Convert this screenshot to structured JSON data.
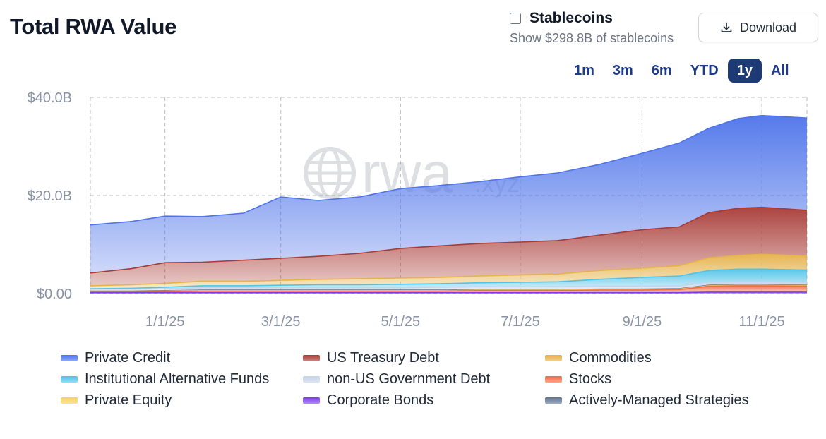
{
  "header": {
    "title": "Total RWA Value",
    "stablecoins_label": "Stablecoins",
    "stablecoins_sub": "Show $298.8B of stablecoins",
    "download_label": "Download"
  },
  "ranges": [
    {
      "label": "1m",
      "active": false
    },
    {
      "label": "3m",
      "active": false
    },
    {
      "label": "6m",
      "active": false
    },
    {
      "label": "YTD",
      "active": false
    },
    {
      "label": "1y",
      "active": true
    },
    {
      "label": "All",
      "active": false
    }
  ],
  "watermark": {
    "main": "rwa",
    "suffix": ".xyz"
  },
  "chart_data": {
    "type": "area",
    "stacked": true,
    "x": [
      "2024-11-24",
      "2024-12-15",
      "2025-01-01",
      "2025-01-20",
      "2025-02-10",
      "2025-03-01",
      "2025-03-20",
      "2025-04-10",
      "2025-05-01",
      "2025-05-20",
      "2025-06-10",
      "2025-07-01",
      "2025-07-20",
      "2025-08-10",
      "2025-09-01",
      "2025-09-20",
      "2025-10-05",
      "2025-10-20",
      "2025-11-01",
      "2025-11-24"
    ],
    "x_ticks": [
      "1/1/25",
      "3/1/25",
      "5/1/25",
      "7/1/25",
      "9/1/25",
      "11/1/25"
    ],
    "y_ticks": [
      "$0.00",
      "$20.0B",
      "$40.0B"
    ],
    "ylim": [
      0,
      40
    ],
    "y_unit": "B USD",
    "grid": true,
    "legend_position": "bottom",
    "series": [
      {
        "name": "Corporate Bonds",
        "color": "#7c3aed",
        "values": [
          0.2,
          0.2,
          0.2,
          0.2,
          0.2,
          0.2,
          0.2,
          0.2,
          0.2,
          0.2,
          0.2,
          0.2,
          0.2,
          0.2,
          0.2,
          0.2,
          0.3,
          0.3,
          0.3,
          0.3
        ]
      },
      {
        "name": "Stocks",
        "color": "#f26b45",
        "values": [
          0.1,
          0.1,
          0.2,
          0.3,
          0.3,
          0.3,
          0.3,
          0.3,
          0.3,
          0.3,
          0.4,
          0.4,
          0.4,
          0.5,
          0.5,
          0.6,
          1.2,
          1.3,
          1.3,
          1.2
        ]
      },
      {
        "name": "Private Equity",
        "color": "#f6d25a",
        "values": [
          0.1,
          0.1,
          0.1,
          0.1,
          0.1,
          0.1,
          0.1,
          0.1,
          0.1,
          0.1,
          0.1,
          0.1,
          0.1,
          0.1,
          0.1,
          0.1,
          0.1,
          0.1,
          0.1,
          0.1
        ]
      },
      {
        "name": "Actively-Managed Strategies",
        "color": "#5d7392",
        "values": [
          0.1,
          0.1,
          0.1,
          0.1,
          0.1,
          0.1,
          0.1,
          0.1,
          0.1,
          0.1,
          0.1,
          0.1,
          0.1,
          0.1,
          0.1,
          0.1,
          0.1,
          0.1,
          0.1,
          0.1
        ]
      },
      {
        "name": "non-US Government Debt",
        "color": "#c6d3ea",
        "values": [
          0.4,
          0.4,
          0.4,
          0.5,
          0.5,
          0.5,
          0.5,
          0.5,
          0.5,
          0.6,
          0.6,
          0.6,
          0.6,
          0.6,
          0.6,
          0.6,
          0.6,
          0.6,
          0.6,
          0.6
        ]
      },
      {
        "name": "Institutional Alternative Funds",
        "color": "#4fc3e8",
        "values": [
          0.1,
          0.2,
          0.3,
          0.4,
          0.4,
          0.5,
          0.6,
          0.6,
          0.7,
          0.7,
          0.8,
          0.9,
          1.0,
          1.4,
          1.8,
          2.0,
          2.4,
          2.6,
          2.6,
          2.5
        ]
      },
      {
        "name": "Commodities",
        "color": "#e6b24a",
        "values": [
          0.6,
          0.7,
          0.8,
          0.9,
          0.9,
          1.0,
          1.1,
          1.2,
          1.3,
          1.3,
          1.4,
          1.5,
          1.6,
          1.8,
          1.9,
          2.1,
          2.6,
          2.8,
          3.0,
          2.9
        ]
      },
      {
        "name": "US Treasury Debt",
        "color": "#a83a35",
        "values": [
          2.6,
          3.3,
          4.2,
          3.9,
          4.3,
          4.5,
          4.7,
          5.2,
          6.0,
          6.4,
          6.6,
          6.7,
          6.8,
          7.2,
          7.8,
          7.9,
          9.2,
          9.6,
          9.6,
          9.3
        ]
      },
      {
        "name": "Private Credit",
        "color": "#4d73ea",
        "values": [
          9.8,
          9.6,
          9.5,
          9.3,
          9.6,
          12.5,
          11.4,
          11.5,
          12.2,
          12.3,
          12.6,
          13.3,
          13.8,
          14.4,
          15.6,
          17.1,
          17.2,
          18.3,
          18.7,
          18.8
        ]
      }
    ]
  },
  "legend": [
    {
      "label": "Private Credit",
      "color": "#4d73ea"
    },
    {
      "label": "US Treasury Debt",
      "color": "#a83a35"
    },
    {
      "label": "Commodities",
      "color": "#e6b24a"
    },
    {
      "label": "Institutional Alternative Funds",
      "color": "#4fc3e8"
    },
    {
      "label": "non-US Government Debt",
      "color": "#c6d3ea"
    },
    {
      "label": "Stocks",
      "color": "#f26b45"
    },
    {
      "label": "Private Equity",
      "color": "#f6d25a"
    },
    {
      "label": "Corporate Bonds",
      "color": "#7c3aed"
    },
    {
      "label": "Actively-Managed Strategies",
      "color": "#5d7392"
    }
  ]
}
